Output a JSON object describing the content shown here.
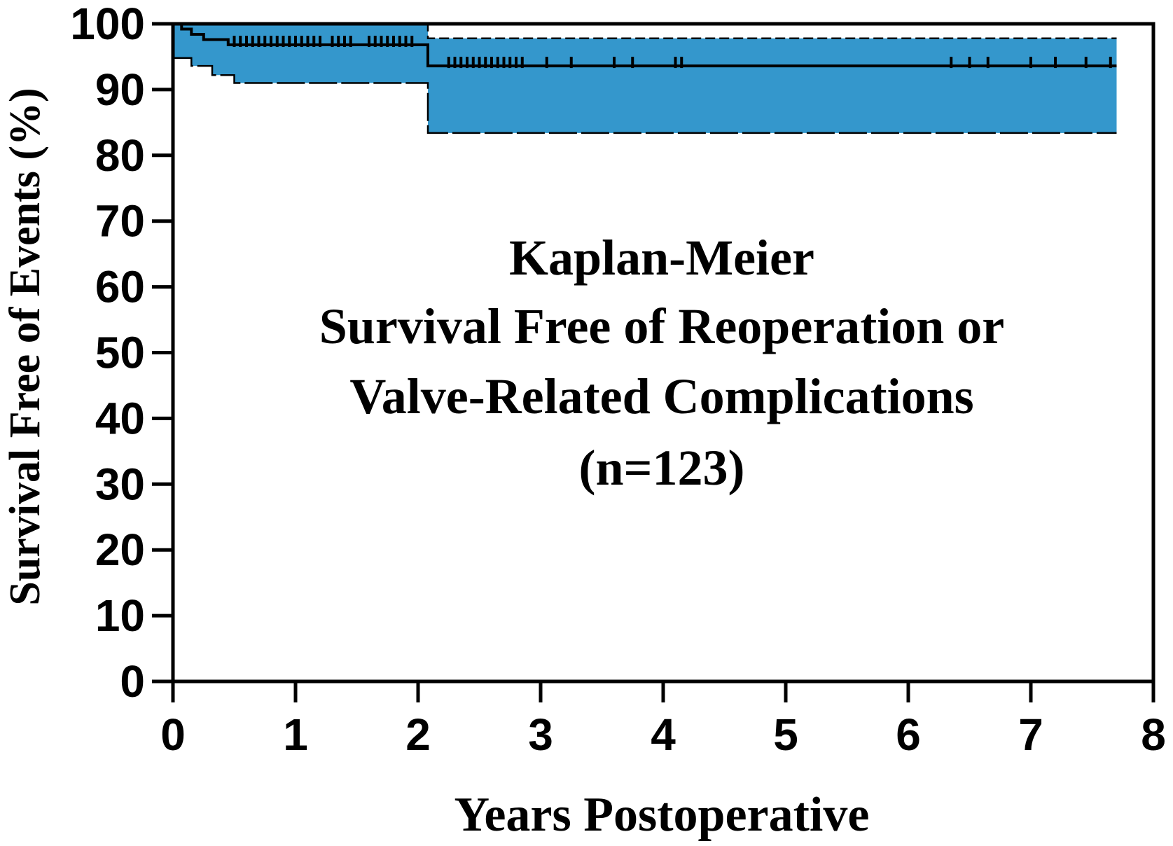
{
  "chart_data": {
    "type": "line",
    "annotation": [
      "Kaplan-Meier",
      "Survival Free of Reoperation or",
      "Valve-Related Complications",
      "(n=123)"
    ],
    "xlabel": "Years Postoperative",
    "ylabel": "Survival Free of Events (%)",
    "xlim": [
      0,
      8
    ],
    "ylim": [
      0,
      100
    ],
    "xticks": [
      0,
      1,
      2,
      3,
      4,
      5,
      6,
      7,
      8
    ],
    "yticks": [
      0,
      10,
      20,
      30,
      40,
      50,
      60,
      70,
      80,
      90,
      100
    ],
    "grid": false,
    "band_color": "#3497cc",
    "line_color": "#000000",
    "survival": {
      "step_x": [
        0,
        0.07,
        0.15,
        0.25,
        0.45,
        2.08,
        7.7
      ],
      "step_y": [
        100,
        99.2,
        98.4,
        97.6,
        96.8,
        93.6,
        93.6
      ]
    },
    "ci_upper": {
      "step_x": [
        0,
        2.08,
        7.7
      ],
      "step_y": [
        99.9,
        97.8,
        97.8
      ]
    },
    "ci_lower": {
      "step_x": [
        0,
        0.15,
        0.32,
        0.5,
        2.08,
        7.7
      ],
      "step_y": [
        94.8,
        93.6,
        92.2,
        91.0,
        83.4,
        83.4
      ]
    },
    "censored_x": [
      0.5,
      0.55,
      0.6,
      0.65,
      0.7,
      0.75,
      0.8,
      0.85,
      0.9,
      0.95,
      1.0,
      1.05,
      1.1,
      1.15,
      1.2,
      1.3,
      1.35,
      1.4,
      1.45,
      1.6,
      1.65,
      1.7,
      1.75,
      1.8,
      1.85,
      1.9,
      1.95,
      2.25,
      2.3,
      2.35,
      2.4,
      2.45,
      2.5,
      2.55,
      2.6,
      2.65,
      2.7,
      2.75,
      2.8,
      2.85,
      3.05,
      3.25,
      3.6,
      3.75,
      4.1,
      4.15,
      6.35,
      6.5,
      6.65,
      7.0,
      7.2,
      7.45,
      7.65
    ]
  }
}
